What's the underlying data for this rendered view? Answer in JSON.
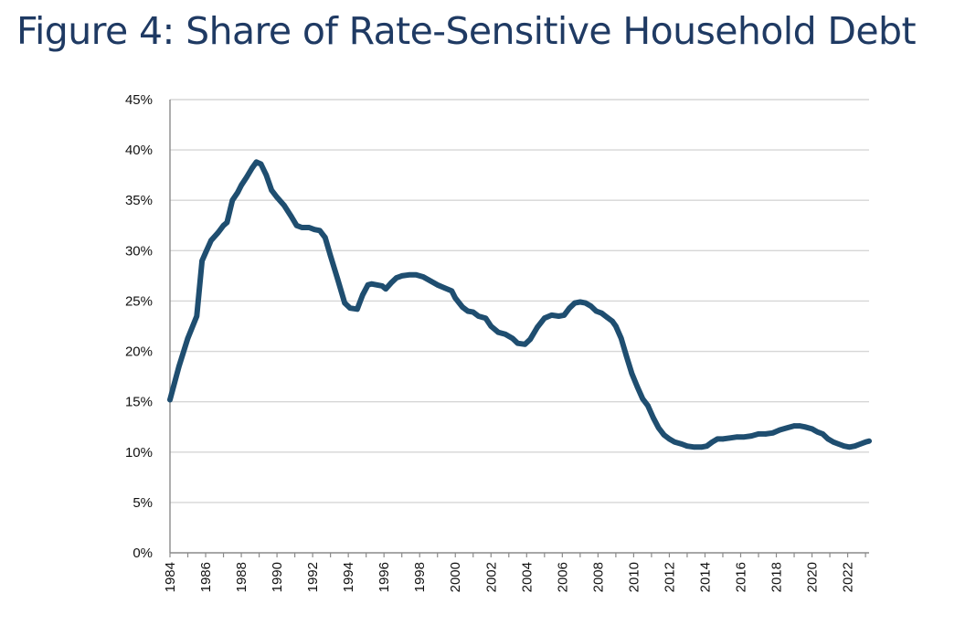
{
  "title": "Figure 4: Share of Rate-Sensitive Household Debt",
  "colors": {
    "title": "#1f3a63",
    "series": "#1f4e70",
    "grid": "#d6d6d6",
    "axis": "#8a8a8a"
  },
  "chart_data": {
    "type": "line",
    "title": "Figure 4: Share of Rate-Sensitive Household Debt",
    "xlabel": "",
    "ylabel": "",
    "xlim": [
      1984,
      2023.2
    ],
    "ylim": [
      0,
      45
    ],
    "y_unit": "%",
    "grid": true,
    "legend": "none",
    "x_tick_labels": [
      "1984",
      "1986",
      "1988",
      "1990",
      "1992",
      "1994",
      "1996",
      "1998",
      "2000",
      "2002",
      "2004",
      "2006",
      "2008",
      "2010",
      "2012",
      "2014",
      "2016",
      "2018",
      "2020",
      "2022"
    ],
    "y_tick_labels": [
      "0%",
      "5%",
      "10%",
      "15%",
      "20%",
      "25%",
      "30%",
      "35%",
      "40%",
      "45%"
    ],
    "series": [
      {
        "x": [
          1984.0,
          1984.5,
          1985.0,
          1985.5,
          1985.8,
          1986.0,
          1986.3,
          1986.7,
          1987.0,
          1987.2,
          1987.5,
          1987.8,
          1988.0,
          1988.3,
          1988.6,
          1988.85,
          1989.1,
          1989.4,
          1989.7,
          1990.0,
          1990.4,
          1990.8,
          1991.1,
          1991.4,
          1991.8,
          1992.1,
          1992.4,
          1992.7,
          1993.0,
          1993.4,
          1993.8,
          1994.1,
          1994.5,
          1994.8,
          1995.1,
          1995.3,
          1995.6,
          1995.9,
          1996.1,
          1996.4,
          1996.7,
          1997.0,
          1997.4,
          1997.8,
          1998.2,
          1998.6,
          1999.0,
          1999.4,
          1999.8,
          2000.0,
          2000.4,
          2000.7,
          2001.0,
          2001.3,
          2001.7,
          2002.0,
          2002.4,
          2002.8,
          2003.2,
          2003.5,
          2003.9,
          2004.2,
          2004.6,
          2005.0,
          2005.4,
          2005.8,
          2006.1,
          2006.4,
          2006.7,
          2007.0,
          2007.3,
          2007.6,
          2007.9,
          2008.2,
          2008.5,
          2008.8,
          2009.0,
          2009.3,
          2009.6,
          2009.9,
          2010.2,
          2010.5,
          2010.8,
          2011.1,
          2011.4,
          2011.7,
          2012.0,
          2012.3,
          2012.7,
          2013.0,
          2013.4,
          2013.8,
          2014.1,
          2014.4,
          2014.7,
          2015.0,
          2015.4,
          2015.8,
          2016.2,
          2016.6,
          2017.0,
          2017.4,
          2017.8,
          2018.2,
          2018.6,
          2019.0,
          2019.3,
          2019.6,
          2020.0,
          2020.3,
          2020.6,
          2020.9,
          2021.2,
          2021.5,
          2021.8,
          2022.1,
          2022.4,
          2022.7,
          2023.0,
          2023.2
        ],
        "values": [
          15.2,
          18.5,
          21.3,
          23.5,
          29.0,
          29.8,
          31.0,
          31.8,
          32.5,
          32.8,
          35.0,
          35.8,
          36.5,
          37.3,
          38.2,
          38.8,
          38.6,
          37.5,
          36.0,
          35.3,
          34.5,
          33.4,
          32.5,
          32.3,
          32.3,
          32.1,
          32.0,
          31.3,
          29.5,
          27.2,
          24.8,
          24.3,
          24.2,
          25.6,
          26.6,
          26.7,
          26.6,
          26.5,
          26.2,
          26.8,
          27.3,
          27.5,
          27.6,
          27.6,
          27.4,
          27.0,
          26.6,
          26.3,
          26.0,
          25.3,
          24.4,
          24.0,
          23.9,
          23.5,
          23.3,
          22.5,
          21.9,
          21.7,
          21.3,
          20.8,
          20.7,
          21.2,
          22.4,
          23.3,
          23.6,
          23.5,
          23.6,
          24.3,
          24.8,
          24.9,
          24.8,
          24.5,
          24.0,
          23.8,
          23.4,
          23.0,
          22.5,
          21.3,
          19.5,
          17.8,
          16.5,
          15.3,
          14.6,
          13.4,
          12.4,
          11.7,
          11.3,
          11.0,
          10.8,
          10.6,
          10.5,
          10.5,
          10.6,
          11.0,
          11.3,
          11.3,
          11.4,
          11.5,
          11.5,
          11.6,
          11.8,
          11.8,
          11.9,
          12.2,
          12.4,
          12.6,
          12.6,
          12.5,
          12.3,
          12.0,
          11.8,
          11.3,
          11.0,
          10.8,
          10.6,
          10.5,
          10.6,
          10.8,
          11.0,
          11.1
        ]
      }
    ]
  }
}
